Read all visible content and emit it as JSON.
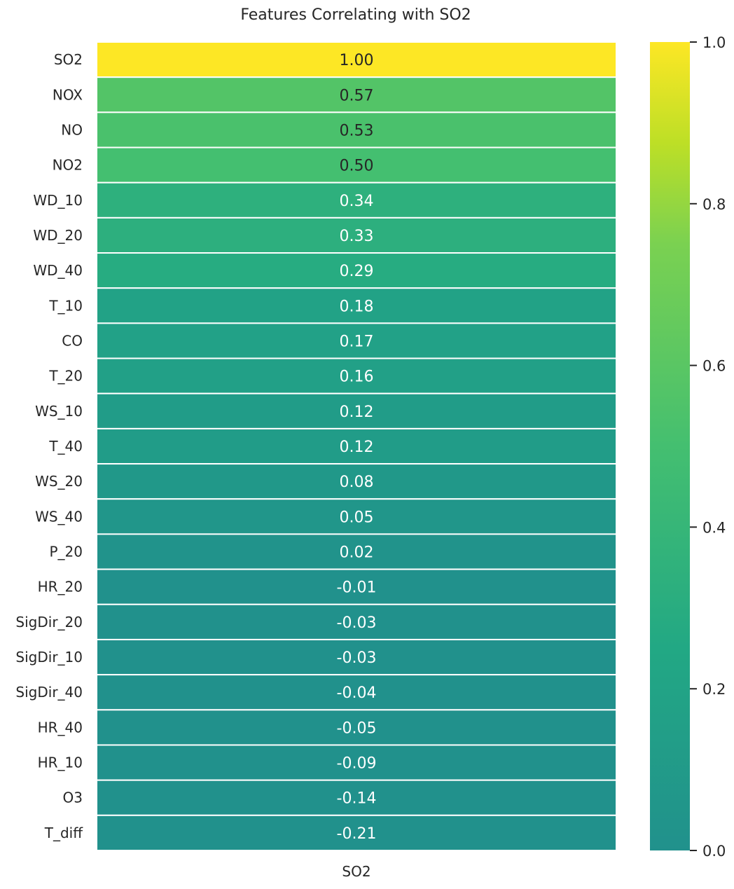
{
  "chart_data": {
    "type": "heatmap",
    "title": "Features Correlating with SO2",
    "columns": [
      "SO2"
    ],
    "rows": [
      "SO2",
      "NOX",
      "NO",
      "NO2",
      "WD_10",
      "WD_20",
      "WD_40",
      "T_10",
      "CO",
      "T_20",
      "WS_10",
      "T_40",
      "WS_20",
      "WS_40",
      "P_20",
      "HR_20",
      "SigDir_20",
      "SigDir_10",
      "SigDir_40",
      "HR_40",
      "HR_10",
      "O3",
      "T_diff"
    ],
    "values": [
      1.0,
      0.57,
      0.53,
      0.5,
      0.34,
      0.33,
      0.29,
      0.18,
      0.17,
      0.16,
      0.12,
      0.12,
      0.08,
      0.05,
      0.02,
      -0.01,
      -0.03,
      -0.03,
      -0.04,
      -0.05,
      -0.09,
      -0.14,
      -0.21
    ],
    "value_labels": [
      "1.00",
      "0.57",
      "0.53",
      "0.50",
      "0.34",
      "0.33",
      "0.29",
      "0.18",
      "0.17",
      "0.16",
      "0.12",
      "0.12",
      "0.08",
      "0.05",
      "0.02",
      "-0.01",
      "-0.03",
      "-0.03",
      "-0.04",
      "-0.05",
      "-0.09",
      "-0.14",
      "-0.21"
    ],
    "colorbar": {
      "vmin": 0.0,
      "vmax": 1.0,
      "ticks": [
        0.0,
        0.2,
        0.4,
        0.6,
        0.8,
        1.0
      ],
      "tick_labels": [
        "0.0",
        "0.2",
        "0.4",
        "0.6",
        "0.8",
        "1.0"
      ],
      "colormap": "viridis (upper half)",
      "clip_below_min": true
    },
    "xlabel": "",
    "ylabel": "",
    "grid": false
  }
}
